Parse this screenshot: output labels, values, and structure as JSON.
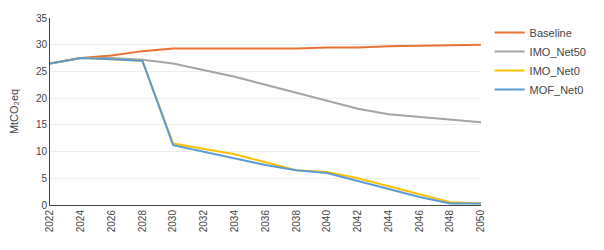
{
  "chart_data": {
    "type": "line",
    "y_label": "MtCO₂eq",
    "x": [
      2022,
      2024,
      2026,
      2028,
      2030,
      2032,
      2034,
      2036,
      2038,
      2040,
      2042,
      2044,
      2046,
      2048,
      2050
    ],
    "series": [
      {
        "name": "Baseline",
        "color": "#E97132",
        "values": [
          26.5,
          27.5,
          28.0,
          28.8,
          29.3,
          29.3,
          29.3,
          29.3,
          29.3,
          29.5,
          29.5,
          29.7,
          29.8,
          29.9,
          30.0
        ]
      },
      {
        "name": "IMO_Net50",
        "color": "#A5A5A5",
        "values": [
          26.5,
          27.5,
          27.5,
          27.2,
          26.5,
          25.3,
          24.0,
          22.5,
          21.0,
          19.5,
          18.0,
          17.0,
          16.5,
          16.0,
          15.5
        ]
      },
      {
        "name": "IMO_Net0",
        "color": "#FFC000",
        "values": [
          26.5,
          27.5,
          27.3,
          27.0,
          11.5,
          10.5,
          9.5,
          8.0,
          6.5,
          6.2,
          5.0,
          3.5,
          2.0,
          0.5,
          0.3
        ]
      },
      {
        "name": "MOF_Net0",
        "color": "#5B9BD5",
        "values": [
          26.5,
          27.5,
          27.3,
          27.0,
          11.2,
          10.0,
          8.8,
          7.5,
          6.5,
          6.0,
          4.5,
          3.0,
          1.5,
          0.3,
          0.3
        ]
      }
    ],
    "xlim": [
      2022,
      2050
    ],
    "xticks": [
      2022,
      2024,
      2026,
      2028,
      2030,
      2032,
      2034,
      2036,
      2038,
      2040,
      2042,
      2044,
      2046,
      2048,
      2050
    ],
    "ylim": [
      0,
      35
    ],
    "yticks": [
      0,
      5,
      10,
      15,
      20,
      25,
      30,
      35
    ],
    "grid": "y",
    "legend": "right"
  }
}
